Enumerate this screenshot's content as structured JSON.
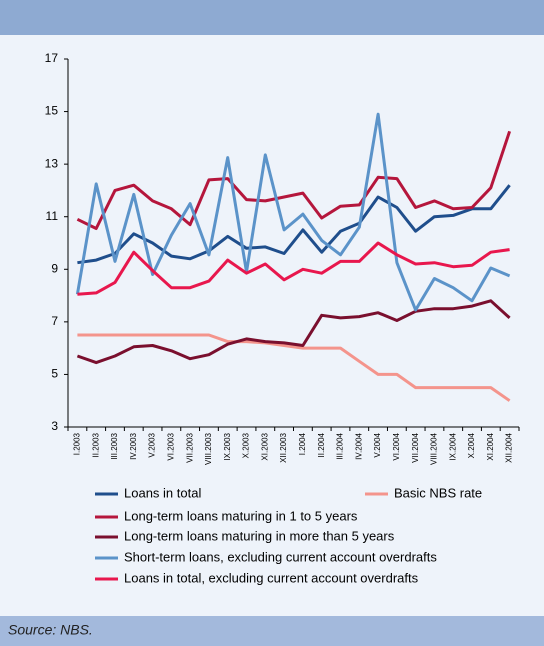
{
  "chart_data": {
    "type": "line",
    "categories": [
      "I.2003",
      "II.2003",
      "III.2003",
      "IV.2003",
      "V.2003",
      "VI.2003",
      "VII.2003",
      "VIII.2003",
      "IX.2003",
      "X.2003",
      "XI.2003",
      "XII.2003",
      "I.2004",
      "II.2004",
      "III.2004",
      "IV.2004",
      "V.2004",
      "VI.2004",
      "VII.2004",
      "VIII.2004",
      "IX.2004",
      "X.2004",
      "XI.2004",
      "XII.2004"
    ],
    "series": [
      {
        "name": "Loans in total",
        "color": "#1f4e8c",
        "values": [
          9.25,
          9.35,
          9.6,
          10.35,
          10.0,
          9.5,
          9.4,
          9.7,
          10.25,
          9.8,
          9.85,
          9.6,
          10.5,
          9.65,
          10.45,
          10.75,
          11.75,
          11.35,
          10.45,
          11.0,
          11.05,
          11.3,
          11.3,
          12.2
        ]
      },
      {
        "name": "Basic NBS rate",
        "color": "#f4948c",
        "values": [
          6.5,
          6.5,
          6.5,
          6.5,
          6.5,
          6.5,
          6.5,
          6.5,
          6.25,
          6.25,
          6.2,
          6.1,
          6.0,
          6.0,
          6.0,
          5.5,
          5.0,
          5.0,
          4.5,
          4.5,
          4.5,
          4.5,
          4.5,
          4.0
        ]
      },
      {
        "name": "Long-term loans maturing in 1 to 5 years",
        "color": "#b5163c",
        "values": [
          10.9,
          10.55,
          12.0,
          12.2,
          11.6,
          11.3,
          10.7,
          12.4,
          12.45,
          11.65,
          11.6,
          11.75,
          11.9,
          10.95,
          11.4,
          11.45,
          12.5,
          12.45,
          11.35,
          11.6,
          11.3,
          11.35,
          12.1,
          14.25
        ]
      },
      {
        "name": "Long-term loans maturing in more than 5 years",
        "color": "#7a0f2e",
        "values": [
          5.7,
          5.45,
          5.7,
          6.05,
          6.1,
          5.9,
          5.6,
          5.75,
          6.15,
          6.35,
          6.25,
          6.2,
          6.1,
          7.25,
          7.15,
          7.2,
          7.35,
          7.05,
          7.4,
          7.5,
          7.5,
          7.6,
          7.8,
          7.15
        ]
      },
      {
        "name": "Short-term loans, excluding current account overdrafts",
        "color": "#5b93c9",
        "values": [
          8.05,
          12.25,
          9.3,
          11.85,
          8.8,
          10.3,
          11.5,
          9.55,
          13.25,
          8.9,
          13.35,
          10.5,
          11.1,
          10.1,
          9.55,
          10.6,
          14.9,
          9.25,
          7.45,
          8.65,
          8.3,
          7.8,
          9.05,
          8.75
        ]
      },
      {
        "name": "Loans in total, excluding current account overdrafts",
        "color": "#e8174d",
        "values": [
          8.05,
          8.1,
          8.5,
          9.65,
          8.95,
          8.3,
          8.3,
          8.55,
          9.35,
          8.85,
          9.2,
          8.6,
          9.0,
          8.85,
          9.3,
          9.3,
          10.0,
          9.55,
          9.2,
          9.25,
          9.1,
          9.15,
          9.65,
          9.75
        ]
      }
    ],
    "ylim": [
      3,
      17
    ],
    "yticks": [
      3,
      5,
      7,
      9,
      11,
      13,
      15,
      17
    ],
    "grid": false,
    "source": "Source: NBS."
  }
}
